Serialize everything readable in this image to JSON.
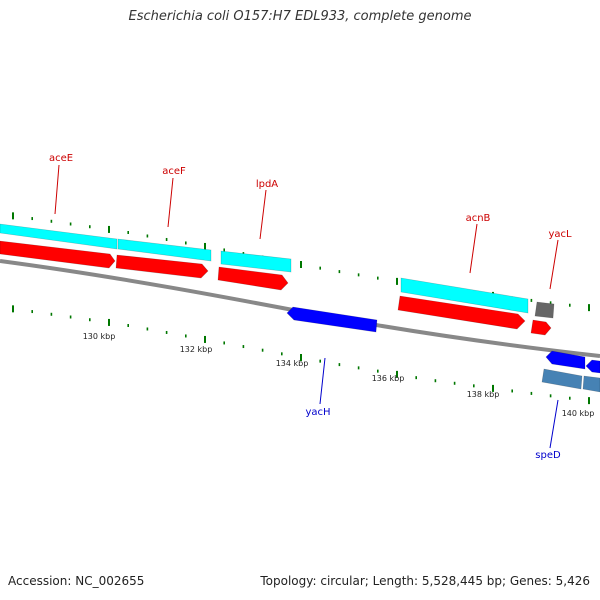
{
  "title": "Escherichia coli O157:H7 EDL933, complete genome",
  "footer": {
    "accession": "Accession: NC_002655",
    "summary": "Topology: circular; Length: 5,528,445 bp; Genes: 5,426"
  },
  "colors": {
    "cds_forward": "#ff0000",
    "rrna_forward": "#00ffff",
    "cds_reverse": "#0000ff",
    "rrna_reverse": "#4682b4",
    "other_feature": "#666666",
    "forward_label": "#cc0000",
    "reverse_label": "#0000cc",
    "backbone": "#888888",
    "ruler_tick": "#007700"
  },
  "ruler_labels": [
    "130 kbp",
    "132 kbp",
    "134 kbp",
    "136 kbp",
    "138 kbp",
    "140 kbp"
  ],
  "gene_labels": {
    "forward": [
      "aceE",
      "aceF",
      "lpdA",
      "acnB",
      "yacL"
    ],
    "reverse": [
      "yacH",
      "speD"
    ]
  }
}
